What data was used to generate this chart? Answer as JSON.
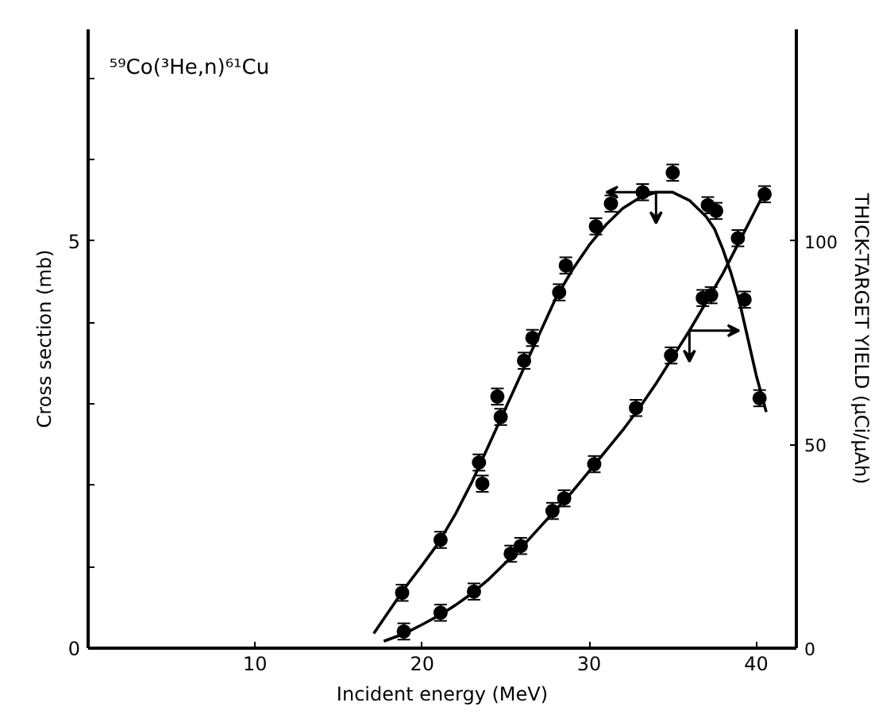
{
  "chart_data": {
    "type": "scatter",
    "title": "⁵⁹Co(³He,n)⁶¹Cu",
    "xlabel": "Incident energy (MeV)",
    "ylabel": "Cross section (mb)",
    "y2label": "THICK-TARGET YIELD (μCi/μAh)",
    "xlim": [
      0,
      42.4
    ],
    "xticks": [
      10,
      20,
      30,
      40
    ],
    "ylim": [
      0,
      7.6
    ],
    "yticks": [
      0,
      {
        "value": 1,
        "label": null
      },
      {
        "value": 2,
        "label": null
      },
      {
        "value": 3,
        "label": null
      },
      {
        "value": 4,
        "label": null
      },
      5,
      {
        "value": 6,
        "label": null
      },
      {
        "value": 7,
        "label": null
      }
    ],
    "y2lim": [
      0,
      152
    ],
    "y2ticks": [
      0,
      50,
      100
    ],
    "marker": "circle",
    "grid": false,
    "series": [
      {
        "color": "#000000",
        "x": [
          18.8,
          21.1,
          23.4,
          23.6,
          24.5,
          24.7,
          26.1,
          26.6,
          28.2,
          28.6,
          30.4,
          31.3,
          33.2,
          35.0,
          37.1,
          37.6,
          39.3,
          40.2
        ],
        "values": [
          0.68,
          1.33,
          2.28,
          2.02,
          3.09,
          2.84,
          3.53,
          3.81,
          4.37,
          4.7,
          5.18,
          5.46,
          5.6,
          5.84,
          5.44,
          5.37,
          4.28,
          3.07
        ],
        "errors": [
          0.1,
          0.1,
          0.1,
          0.1,
          0.1,
          0.1,
          0.1,
          0.1,
          0.1,
          0.1,
          0.1,
          0.1,
          0.1,
          0.1,
          0.1,
          0.1,
          0.1,
          0.1
        ]
      },
      {
        "type": "line",
        "marker": "none",
        "color": "#000000",
        "x": [
          17.1,
          18,
          19,
          20,
          21,
          22,
          23,
          24,
          25,
          26,
          27,
          28,
          29,
          30,
          31,
          32,
          33,
          34,
          35,
          36,
          37,
          37.5,
          38,
          38.5,
          39,
          39.5,
          40,
          40.6
        ],
        "values": [
          0.18,
          0.45,
          0.75,
          1.02,
          1.3,
          1.65,
          2.05,
          2.5,
          2.95,
          3.4,
          3.85,
          4.3,
          4.65,
          4.95,
          5.2,
          5.4,
          5.53,
          5.6,
          5.6,
          5.5,
          5.3,
          5.15,
          4.9,
          4.6,
          4.25,
          3.8,
          3.35,
          2.9
        ]
      },
      {
        "axis": "y2",
        "color": "#000000",
        "x": [
          18.9,
          21.1,
          23.1,
          25.3,
          25.9,
          27.8,
          28.5,
          30.3,
          32.8,
          34.9,
          36.8,
          37.3,
          38.9,
          40.5
        ],
        "values": [
          4.1,
          8.7,
          13.9,
          23.2,
          25.1,
          33.7,
          36.8,
          45.2,
          59.0,
          71.9,
          86.0,
          86.7,
          100.7,
          111.5
        ],
        "errors": [
          2,
          2,
          2,
          2,
          2,
          2,
          2,
          2,
          2,
          2,
          2,
          2,
          2,
          2
        ]
      },
      {
        "type": "line",
        "marker": "none",
        "axis": "y2",
        "color": "#000000",
        "x": [
          17.7,
          18.9,
          20,
          21,
          22,
          23,
          24,
          25,
          26,
          27,
          28,
          29,
          30,
          31,
          32,
          33,
          34,
          35,
          36,
          37,
          38,
          38.5,
          39,
          39.5,
          40,
          40.5
        ],
        "values": [
          1.7,
          3.5,
          5.8,
          8,
          10.6,
          13.5,
          17,
          21,
          25,
          29.5,
          34,
          38.5,
          43.5,
          48.5,
          53.5,
          59,
          65,
          71.5,
          78,
          85,
          92,
          96,
          100,
          104,
          108,
          112
        ]
      }
    ]
  }
}
